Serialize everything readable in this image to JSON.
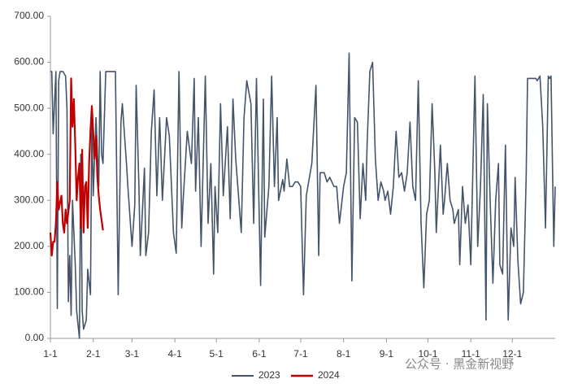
{
  "chart_data": {
    "type": "line",
    "xlim": [
      0,
      365
    ],
    "xticks": [
      {
        "value": 0,
        "label": "1-1"
      },
      {
        "value": 31,
        "label": "2-1"
      },
      {
        "value": 59,
        "label": "3-1"
      },
      {
        "value": 90,
        "label": "4-1"
      },
      {
        "value": 120,
        "label": "5-1"
      },
      {
        "value": 151,
        "label": "6-1"
      },
      {
        "value": 181,
        "label": "7-1"
      },
      {
        "value": 212,
        "label": "8-1"
      },
      {
        "value": 243,
        "label": "9-1"
      },
      {
        "value": 273,
        "label": "10-1"
      },
      {
        "value": 304,
        "label": "11-1"
      },
      {
        "value": 334,
        "label": "12-1"
      }
    ],
    "ylim": [
      0,
      700
    ],
    "yticks": [
      {
        "value": 0,
        "label": "0.00"
      },
      {
        "value": 100,
        "label": "100.00"
      },
      {
        "value": 200,
        "label": "200.00"
      },
      {
        "value": 300,
        "label": "300.00"
      },
      {
        "value": 400,
        "label": "400.00"
      },
      {
        "value": 500,
        "label": "500.00"
      },
      {
        "value": 600,
        "label": "600.00"
      },
      {
        "value": 700,
        "label": "700.00"
      }
    ],
    "legend": "bottom",
    "annotation": "公众号 · 黑金新视野",
    "series": [
      {
        "name": "2023",
        "color": "#44546a",
        "x": [
          0,
          1,
          2,
          4,
          5,
          6,
          7,
          9,
          11,
          12,
          13,
          14,
          15,
          16,
          18,
          19,
          21,
          22,
          23,
          24,
          26,
          27,
          29,
          30,
          31,
          33,
          35,
          36,
          37,
          38,
          40,
          47,
          49,
          51,
          52,
          55,
          56,
          59,
          61,
          62,
          64,
          65,
          68,
          69,
          71,
          73,
          75,
          77,
          79,
          81,
          84,
          86,
          89,
          91,
          93,
          95,
          96,
          99,
          102,
          104,
          105,
          107,
          109,
          112,
          114,
          116,
          118,
          119,
          121,
          123,
          125,
          128,
          130,
          132,
          134,
          136,
          138,
          140,
          142,
          145,
          147,
          149,
          152,
          154,
          155,
          158,
          160,
          162,
          164,
          165,
          168,
          169,
          171,
          173,
          175,
          177,
          179,
          181,
          183,
          185,
          189,
          192,
          194,
          195,
          198,
          200,
          202,
          205,
          207,
          209,
          212,
          214,
          216,
          218,
          220,
          222,
          224,
          226,
          228,
          229,
          231,
          233,
          235,
          237,
          239,
          241,
          242,
          244,
          246,
          248,
          250,
          252,
          254,
          256,
          258,
          260,
          262,
          264,
          266,
          268,
          270,
          272,
          274,
          276,
          278,
          279,
          282,
          284,
          285,
          287,
          289,
          291,
          292,
          295,
          296,
          298,
          300,
          302,
          304,
          305,
          307,
          309,
          311,
          313,
          315,
          316,
          318,
          320,
          322,
          324,
          325,
          327,
          329,
          331,
          333,
          335,
          336,
          338,
          340,
          342,
          344,
          345,
          347,
          349,
          351,
          352,
          354,
          356,
          358,
          360,
          361,
          362,
          364,
          365
        ],
        "values": [
          580,
          580,
          445,
          580,
          65,
          560,
          580,
          580,
          570,
          500,
          80,
          180,
          50,
          300,
          160,
          60,
          0,
          400,
          60,
          20,
          40,
          150,
          95,
          480,
          310,
          480,
          330,
          580,
          400,
          380,
          580,
          580,
          95,
          470,
          510,
          380,
          330,
          200,
          290,
          550,
          330,
          180,
          370,
          180,
          230,
          450,
          540,
          310,
          480,
          300,
          480,
          440,
          230,
          185,
          580,
          240,
          300,
          450,
          380,
          565,
          320,
          480,
          200,
          570,
          250,
          380,
          140,
          330,
          230,
          510,
          310,
          460,
          260,
          520,
          390,
          310,
          230,
          480,
          560,
          510,
          250,
          565,
          115,
          520,
          220,
          330,
          570,
          330,
          480,
          300,
          345,
          320,
          390,
          330,
          330,
          340,
          340,
          330,
          95,
          310,
          380,
          550,
          180,
          360,
          360,
          340,
          350,
          330,
          330,
          250,
          330,
          360,
          620,
          125,
          480,
          470,
          260,
          380,
          300,
          420,
          580,
          600,
          390,
          300,
          340,
          320,
          300,
          320,
          270,
          330,
          450,
          350,
          360,
          320,
          360,
          470,
          330,
          300,
          560,
          250,
          110,
          270,
          300,
          510,
          360,
          230,
          420,
          270,
          300,
          380,
          300,
          280,
          250,
          280,
          160,
          330,
          250,
          290,
          160,
          300,
          570,
          200,
          330,
          530,
          40,
          510,
          300,
          120,
          300,
          380,
          160,
          140,
          420,
          40,
          240,
          200,
          350,
          170,
          75,
          100,
          350,
          565,
          565,
          565,
          565,
          560,
          570,
          460,
          240,
          570,
          565,
          570,
          200,
          330
        ]
      },
      {
        "name": "2024",
        "color": "#c00000",
        "x": [
          0,
          1,
          2,
          3,
          4,
          5,
          6,
          8,
          9,
          10,
          11,
          12,
          14,
          15,
          16,
          17,
          18,
          19,
          20,
          21,
          22,
          23,
          24,
          25,
          26,
          27,
          28,
          29,
          30,
          32,
          33,
          34,
          35,
          36,
          38
        ],
        "values": [
          230,
          180,
          210,
          210,
          250,
          340,
          280,
          310,
          250,
          230,
          280,
          250,
          300,
          565,
          460,
          520,
          420,
          300,
          350,
          380,
          240,
          410,
          230,
          330,
          340,
          240,
          380,
          450,
          505,
          390,
          440,
          350,
          310,
          280,
          235
        ]
      }
    ]
  }
}
